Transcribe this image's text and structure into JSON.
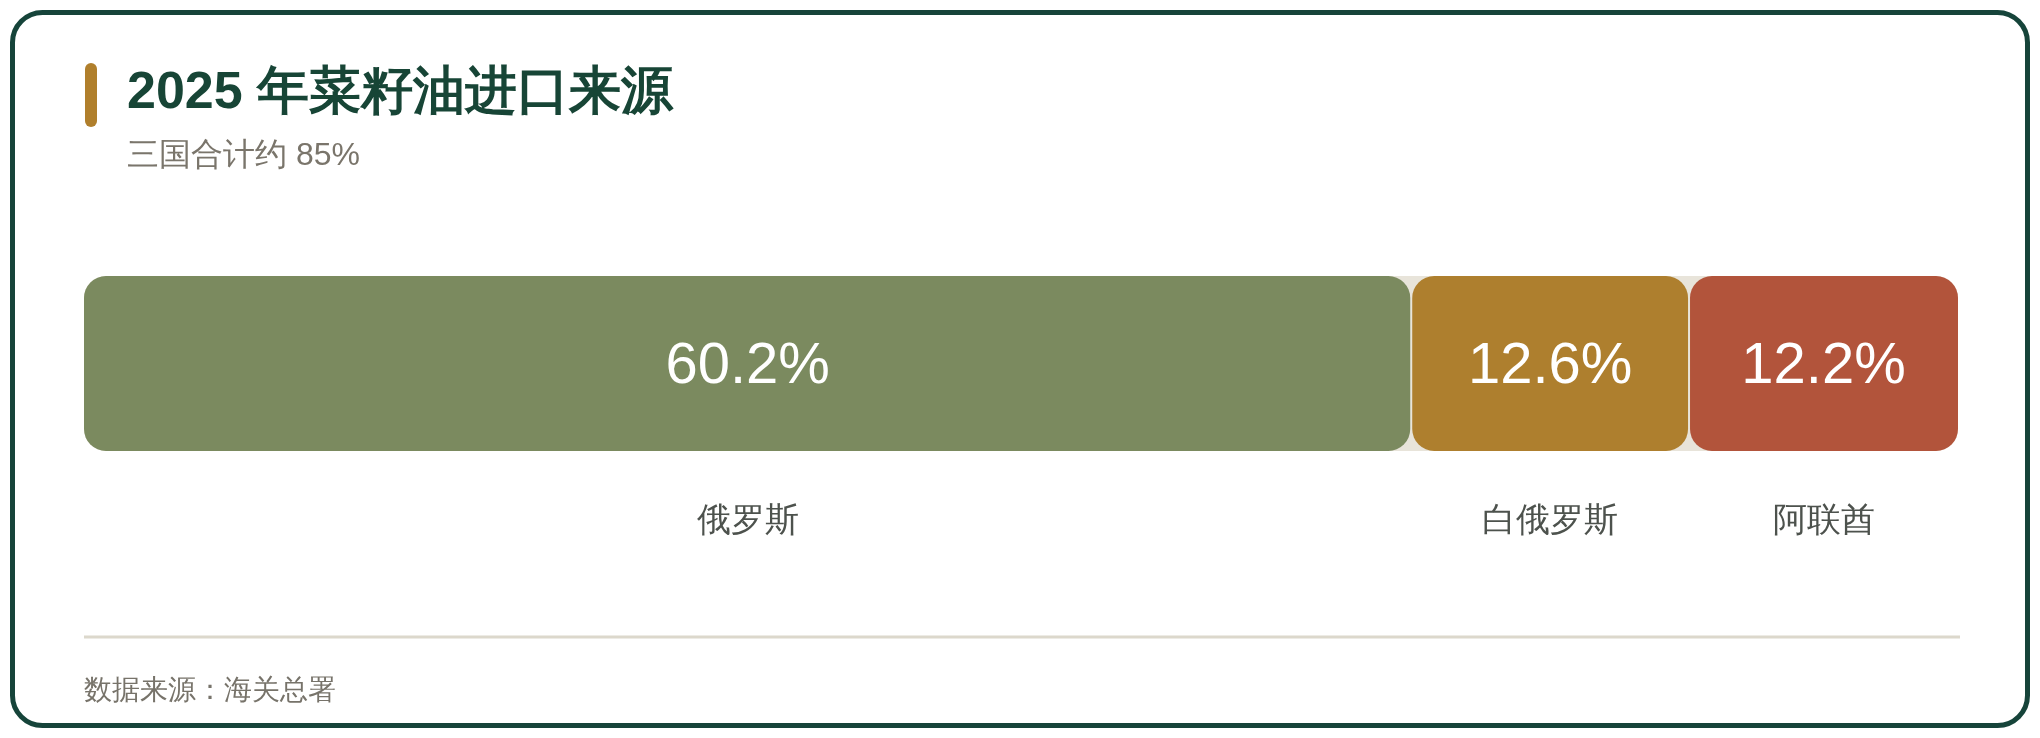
{
  "chart_data": {
    "type": "bar",
    "stacked": true,
    "orientation": "horizontal",
    "title": "2025 年菜籽油进口来源",
    "subtitle": "三国合计约 85%",
    "categories": [
      null
    ],
    "series": [
      {
        "name": "俄罗斯",
        "color": "#7b8a5f",
        "values": [
          60.2
        ],
        "value_labels": [
          "60.2%"
        ]
      },
      {
        "name": "白俄罗斯",
        "color": "#ae7f2e",
        "values": [
          12.6
        ],
        "value_labels": [
          "12.6%"
        ]
      },
      {
        "name": "阿联酋",
        "color": "#b2543b",
        "values": [
          12.2
        ],
        "value_labels": [
          "12.2%"
        ]
      }
    ],
    "annotations": [
      "数据来源：海关总署"
    ]
  }
}
